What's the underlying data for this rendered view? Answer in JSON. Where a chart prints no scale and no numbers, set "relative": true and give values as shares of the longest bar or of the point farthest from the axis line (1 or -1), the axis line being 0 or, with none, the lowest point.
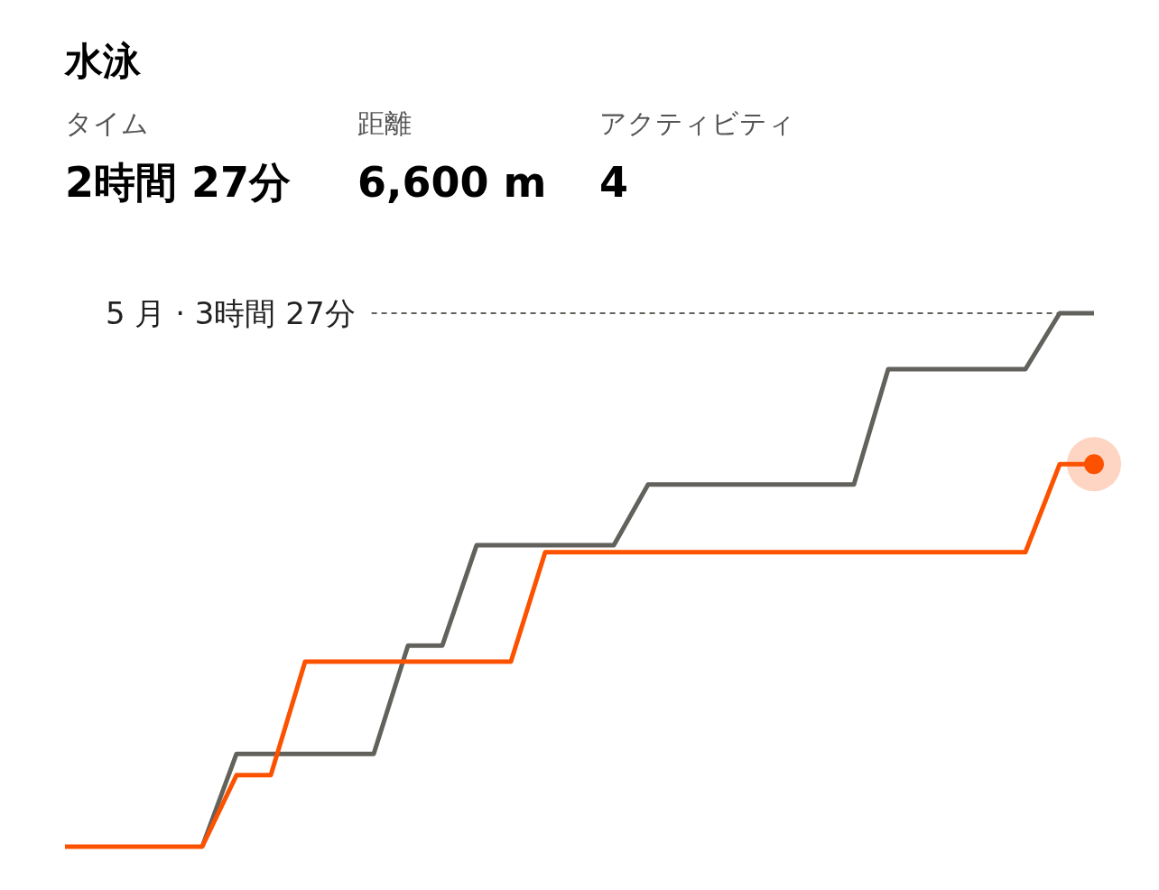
{
  "chart_data": {
    "type": "line",
    "title": "水泳",
    "annotations": [
      "タイム",
      "2時間 27分",
      "距離",
      "6,600 m",
      "アクティビティ",
      "4"
    ],
    "relative": true,
    "categories": [
      null,
      null,
      null,
      null,
      null,
      null,
      null,
      null,
      null,
      null,
      null,
      null,
      null,
      null,
      null,
      null,
      null,
      null,
      null,
      null,
      null,
      null,
      null,
      null,
      null,
      null,
      null,
      null,
      null,
      null,
      null
    ],
    "series": [
      {
        "color": "#63615c",
        "values": [
          null,
          null,
          null,
          null,
          0,
          0.174,
          0.174,
          0.174,
          0.174,
          0.174,
          0.377,
          0.377,
          0.565,
          0.565,
          0.565,
          0.565,
          0.565,
          0.679,
          0.679,
          0.679,
          0.679,
          0.679,
          0.679,
          0.679,
          0.895,
          0.895,
          0.895,
          0.895,
          0.895,
          1,
          1
        ]
      },
      {
        "color": "#fc5200",
        "values": [
          0,
          0,
          0,
          0,
          0,
          0.134,
          0.134,
          0.347,
          0.347,
          0.347,
          0.347,
          0.347,
          0.347,
          0.347,
          0.552,
          0.552,
          0.552,
          0.552,
          0.552,
          0.552,
          0.552,
          0.552,
          0.552,
          0.552,
          0.552,
          0.552,
          0.552,
          0.552,
          0.552,
          0.717,
          0.717
        ]
      }
    ],
    "ref_lines": [
      {
        "axis": "y",
        "value": 1,
        "label": "5 月 · 3時間 27分",
        "color": "#63615c",
        "line_style": "dashed"
      }
    ],
    "marker": "none",
    "line_style": "solid"
  }
}
